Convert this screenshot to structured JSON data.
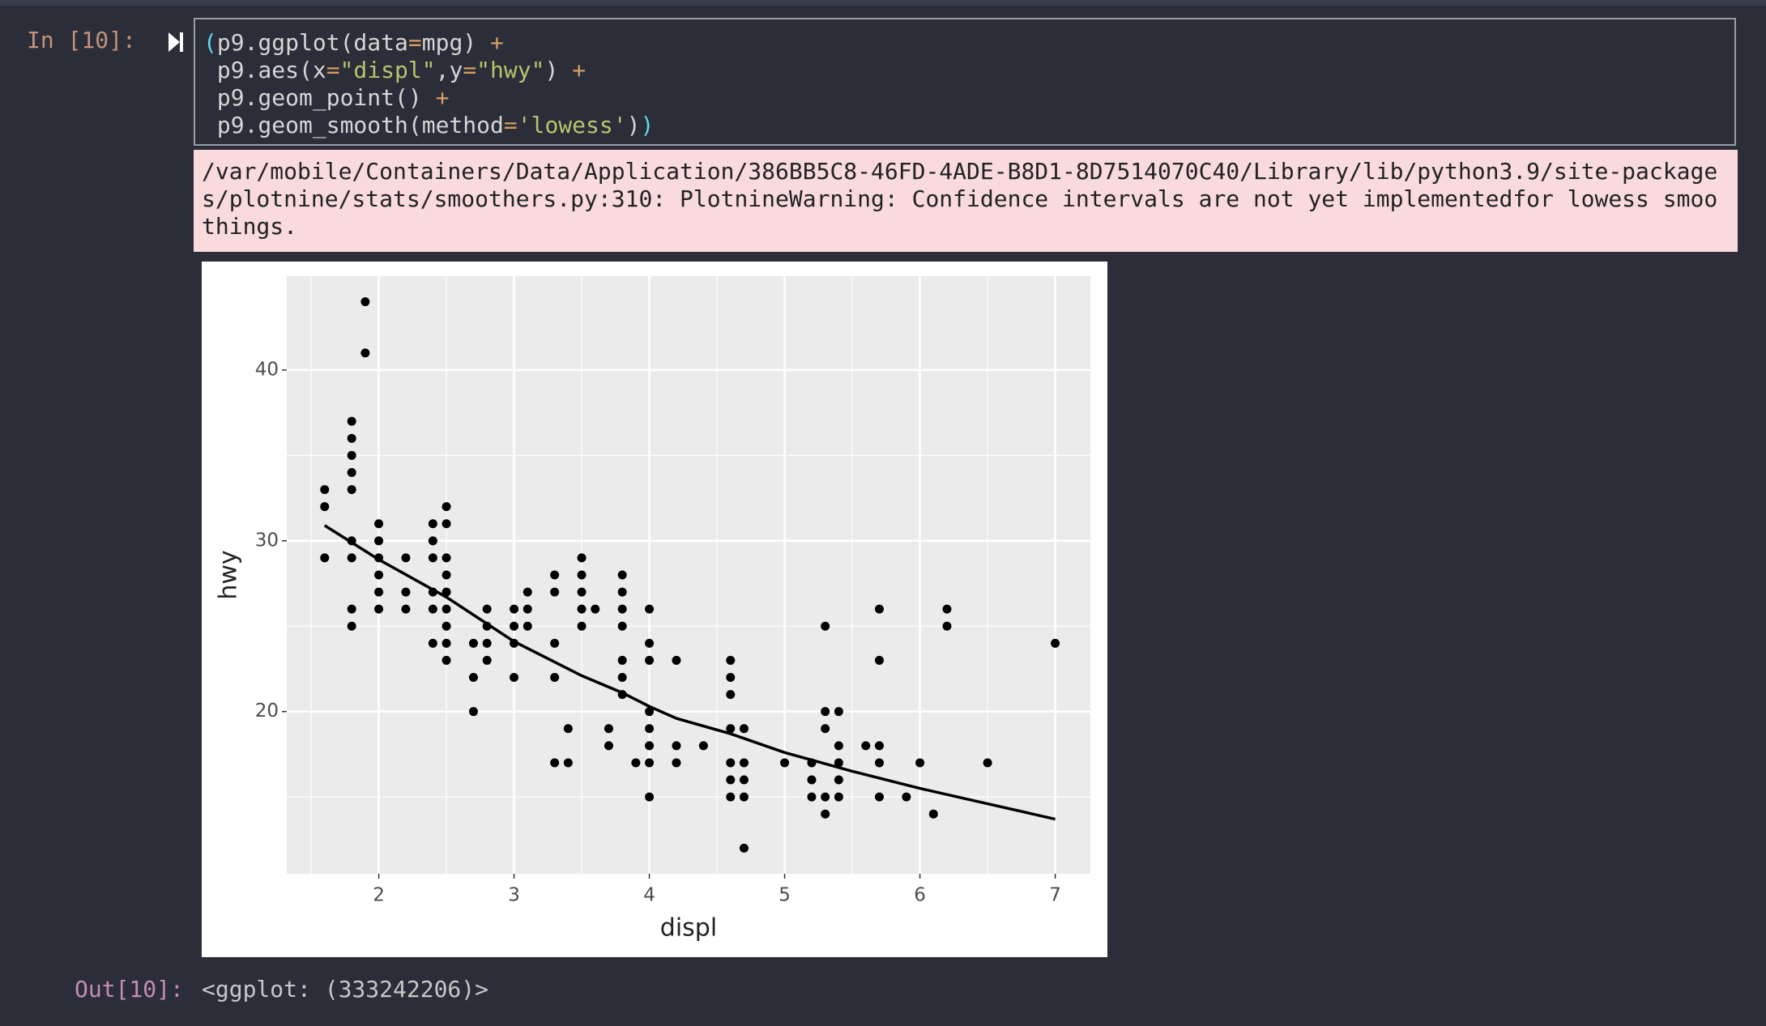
{
  "cell": {
    "prompt": "In [10]:",
    "code": [
      [
        {
          "text": "(",
          "kind": "paren"
        },
        {
          "text": "p9.ggplot(data",
          "kind": "plain"
        },
        {
          "text": "=",
          "kind": "op"
        },
        {
          "text": "mpg) ",
          "kind": "plain"
        },
        {
          "text": "+",
          "kind": "op"
        }
      ],
      [
        {
          "text": " p9.aes(x",
          "kind": "plain"
        },
        {
          "text": "=",
          "kind": "op"
        },
        {
          "text": "\"displ\"",
          "kind": "str"
        },
        {
          "text": ",y",
          "kind": "plain"
        },
        {
          "text": "=",
          "kind": "op"
        },
        {
          "text": "\"hwy\"",
          "kind": "str"
        },
        {
          "text": ") ",
          "kind": "plain"
        },
        {
          "text": "+",
          "kind": "op"
        }
      ],
      [
        {
          "text": " p9.geom_point() ",
          "kind": "plain"
        },
        {
          "text": "+",
          "kind": "op"
        }
      ],
      [
        {
          "text": " p9.geom_smooth(method",
          "kind": "plain"
        },
        {
          "text": "=",
          "kind": "op"
        },
        {
          "text": "'lowess'",
          "kind": "str"
        },
        {
          "text": ")",
          "kind": "plain"
        },
        {
          "text": ")",
          "kind": "paren"
        }
      ]
    ],
    "warning": "/var/mobile/Containers/Data/Application/386BB5C8-46FD-4ADE-B8D1-8D7514070C40/Library/lib/python3.9/site-packages/plotnine/stats/smoothers.py:310: PlotnineWarning: Confidence intervals are not yet implementedfor lowess smoothings.",
    "out_prompt": "Out[10]:",
    "output": "<ggplot: (333242206)>"
  },
  "chart_data": {
    "type": "scatter",
    "xlabel": "displ",
    "ylabel": "hwy",
    "xlim": [
      1.32,
      7.26
    ],
    "ylim": [
      10.5,
      45.5
    ],
    "xticks": [
      2,
      3,
      4,
      5,
      6,
      7
    ],
    "yticks": [
      20,
      30,
      40
    ],
    "minor_xticks": [
      1.5,
      2.5,
      3.5,
      4.5,
      5.5,
      6.5
    ],
    "minor_yticks": [
      15,
      25,
      35
    ],
    "grid": true,
    "series": [
      {
        "type": "scatter",
        "color": "#000000",
        "x": [
          1.6,
          1.6,
          1.6,
          1.9,
          1.9,
          1.8,
          1.8,
          1.8,
          1.8,
          1.8,
          1.8,
          1.8,
          1.8,
          1.8,
          2.0,
          2.0,
          2.0,
          2.0,
          2.0,
          2.0,
          2.2,
          2.2,
          2.2,
          2.4,
          2.4,
          2.4,
          2.4,
          2.4,
          2.4,
          2.5,
          2.5,
          2.5,
          2.5,
          2.5,
          2.5,
          2.5,
          2.5,
          2.5,
          2.7,
          2.7,
          2.7,
          2.8,
          2.8,
          2.8,
          2.8,
          3.0,
          3.0,
          3.0,
          3.0,
          3.1,
          3.1,
          3.1,
          3.3,
          3.3,
          3.3,
          3.3,
          3.3,
          3.4,
          3.4,
          3.5,
          3.5,
          3.5,
          3.5,
          3.5,
          3.6,
          3.7,
          3.7,
          3.8,
          3.8,
          3.8,
          3.8,
          3.8,
          3.8,
          3.8,
          3.9,
          4.0,
          4.0,
          4.0,
          4.0,
          4.0,
          4.0,
          4.0,
          4.0,
          4.2,
          4.2,
          4.2,
          4.4,
          4.6,
          4.6,
          4.6,
          4.6,
          4.6,
          4.6,
          4.6,
          4.7,
          4.7,
          4.7,
          4.7,
          4.7,
          5.0,
          5.2,
          5.2,
          5.2,
          5.3,
          5.3,
          5.3,
          5.3,
          5.3,
          5.4,
          5.4,
          5.4,
          5.4,
          5.4,
          5.6,
          5.7,
          5.7,
          5.7,
          5.7,
          5.7,
          5.9,
          6.0,
          6.1,
          6.2,
          6.2,
          6.5,
          7.0
        ],
        "values": [
          33,
          32,
          29,
          44,
          41,
          37,
          36,
          35,
          34,
          33,
          30,
          29,
          26,
          25,
          31,
          30,
          29,
          28,
          27,
          26,
          29,
          27,
          26,
          31,
          30,
          29,
          27,
          26,
          24,
          32,
          31,
          29,
          28,
          27,
          26,
          25,
          24,
          23,
          24,
          22,
          20,
          26,
          25,
          24,
          23,
          26,
          25,
          24,
          22,
          27,
          26,
          25,
          28,
          27,
          24,
          22,
          17,
          19,
          17,
          29,
          28,
          27,
          26,
          25,
          26,
          19,
          18,
          28,
          27,
          26,
          25,
          23,
          22,
          21,
          17,
          26,
          24,
          23,
          20,
          19,
          18,
          17,
          15,
          23,
          18,
          17,
          18,
          23,
          22,
          21,
          19,
          17,
          16,
          15,
          19,
          17,
          16,
          15,
          12,
          17,
          17,
          16,
          15,
          25,
          20,
          19,
          15,
          14,
          20,
          18,
          17,
          16,
          15,
          18,
          26,
          23,
          18,
          17,
          15,
          15,
          17,
          14,
          26,
          25,
          17,
          24
        ]
      },
      {
        "type": "line",
        "color": "#000000",
        "x": [
          1.6,
          2.0,
          2.5,
          3.0,
          3.5,
          3.8,
          4.0,
          4.2,
          4.6,
          5.0,
          5.5,
          6.0,
          6.5,
          7.0
        ],
        "values": [
          30.9,
          28.9,
          26.7,
          24.1,
          22.1,
          21.1,
          20.3,
          19.6,
          18.7,
          17.6,
          16.5,
          15.5,
          14.6,
          13.7
        ]
      }
    ]
  }
}
